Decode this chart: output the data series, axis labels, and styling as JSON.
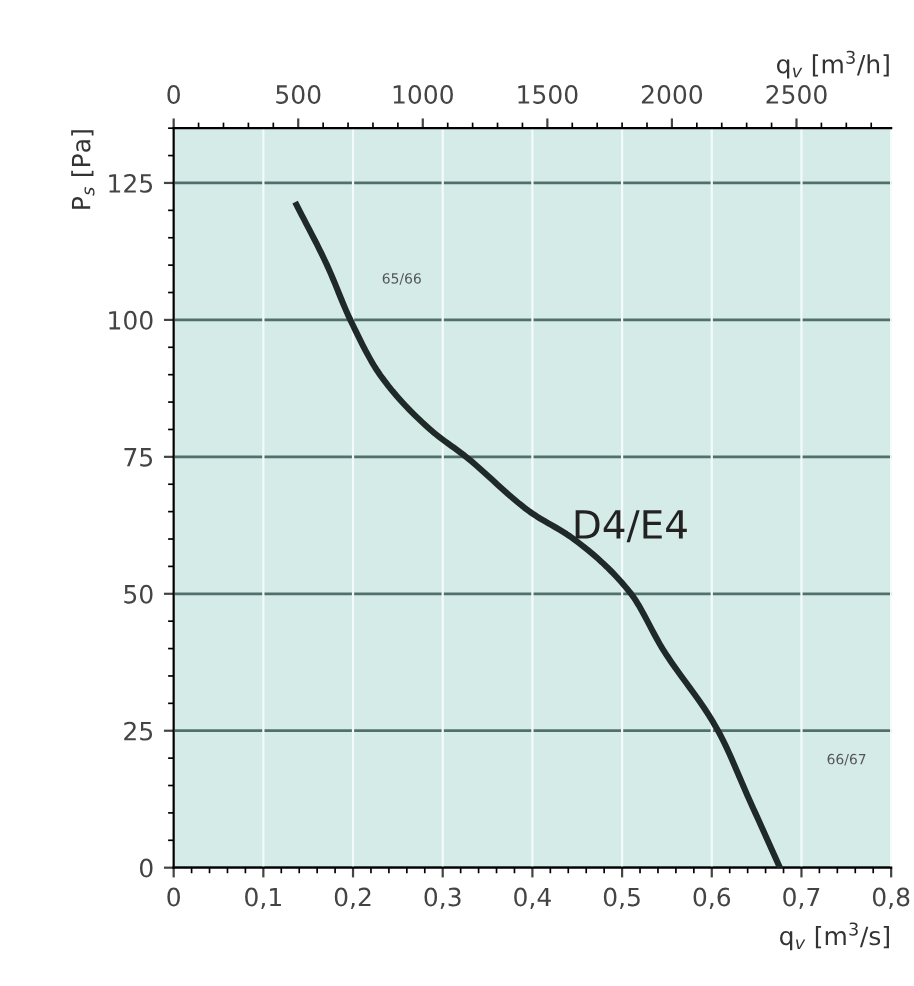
{
  "chart_data": {
    "type": "line",
    "xlabel": "q$_{v}$ [m$^{3}$/s]",
    "ylabel": "P$_{s}$ [Pa]",
    "x2label": "q$_{v}$ [m$^{3}$/h]",
    "series": [
      {
        "name": "D4/E4",
        "color": "#1f2a28",
        "x": [
          0.137,
          0.171,
          0.197,
          0.23,
          0.286,
          0.326,
          0.397,
          0.446,
          0.51,
          0.545,
          0.607,
          0.643,
          0.676
        ],
        "values": [
          121,
          110,
          100,
          90,
          80,
          75,
          65,
          60,
          50,
          40,
          25,
          12,
          0
        ]
      }
    ],
    "xlim": [
      0,
      0.8
    ],
    "xticks": [
      0,
      {
        "value": 0.1,
        "label": "0,1"
      },
      {
        "value": 0.2,
        "label": "0,2"
      },
      {
        "value": 0.3,
        "label": "0,3"
      },
      {
        "value": 0.4,
        "label": "0,4"
      },
      {
        "value": 0.5,
        "label": "0,5"
      },
      {
        "value": 0.6,
        "label": "0,6"
      },
      {
        "value": 0.7,
        "label": "0,7"
      },
      {
        "value": 0.8,
        "label": "0,8"
      }
    ],
    "x2lim": [
      0,
      2880
    ],
    "x2ticks": [
      0,
      500,
      1000,
      1500,
      2000,
      2500
    ],
    "ylim": [
      0,
      135
    ],
    "yticks": [
      0,
      25,
      50,
      75,
      100,
      125
    ],
    "annotations": [
      "65/66",
      "66/67"
    ],
    "grid": true,
    "legend": false,
    "marker": "none",
    "line_style": "solid"
  }
}
